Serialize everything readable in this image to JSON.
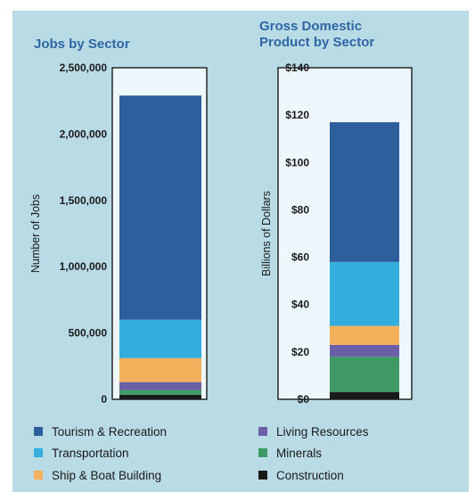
{
  "chart_data": [
    {
      "type": "bar",
      "stacked": true,
      "title": "Jobs by Sector",
      "ylabel": "Number of Jobs",
      "ylim": [
        0,
        2500000
      ],
      "yticks": [
        0,
        500000,
        1000000,
        1500000,
        2000000,
        2500000
      ],
      "ytick_labels": [
        "0",
        "500,000",
        "1,000,000",
        "1,500,000",
        "2,000,000",
        "2,500,000"
      ],
      "series": [
        {
          "name": "Construction",
          "values": [
            35000
          ]
        },
        {
          "name": "Minerals",
          "values": [
            35000
          ]
        },
        {
          "name": "Living Resources",
          "values": [
            60000
          ]
        },
        {
          "name": "Ship & Boat Building",
          "values": [
            180000
          ]
        },
        {
          "name": "Transportation",
          "values": [
            290000
          ]
        },
        {
          "name": "Tourism & Recreation",
          "values": [
            1690000
          ]
        }
      ]
    },
    {
      "type": "bar",
      "stacked": true,
      "title": "Gross Domestic Product by Sector",
      "title_lines": [
        "Gross Domestic",
        "Product by Sector"
      ],
      "ylabel": "Billions of Dollars",
      "ylim": [
        0,
        140
      ],
      "yticks": [
        0,
        20,
        40,
        60,
        80,
        100,
        120,
        140
      ],
      "ytick_labels": [
        "$0",
        "$20",
        "$40",
        "$60",
        "$80",
        "$100",
        "$120",
        "$140"
      ],
      "series": [
        {
          "name": "Construction",
          "values": [
            3
          ]
        },
        {
          "name": "Minerals",
          "values": [
            15
          ]
        },
        {
          "name": "Living Resources",
          "values": [
            5
          ]
        },
        {
          "name": "Ship & Boat Building",
          "values": [
            8
          ]
        },
        {
          "name": "Transportation",
          "values": [
            27
          ]
        },
        {
          "name": "Tourism & Recreation",
          "values": [
            59
          ]
        }
      ]
    }
  ],
  "colors": {
    "Tourism & Recreation": "#2e5f9c",
    "Transportation": "#33aedd",
    "Ship & Boat Building": "#f5b05c",
    "Living Resources": "#6c5fa8",
    "Minerals": "#3f9a66",
    "Construction": "#1a1a1a"
  },
  "legend": {
    "placement": "bottom",
    "entries": [
      "Tourism & Recreation",
      "Transportation",
      "Ship & Boat Building",
      "Living Resources",
      "Minerals",
      "Construction"
    ]
  }
}
